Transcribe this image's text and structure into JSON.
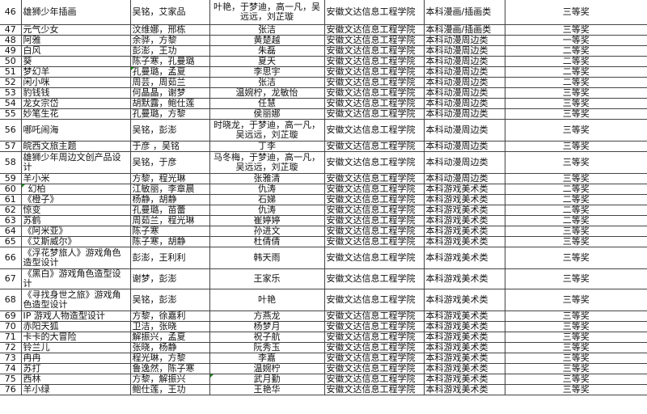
{
  "rows": [
    {
      "no": "46",
      "name": "雄狮少年插画",
      "authors": "吴铭，艾家品",
      "advisors": "叶艳，于梦迪，高一凡，吴远远，刘芷璇",
      "school": "安徽文达信息工程学院",
      "category": "本科漫画/插画类",
      "award": "三等奖",
      "h": "f"
    },
    {
      "no": "47",
      "name": "元气少女",
      "authors": "汶维娜，邢栋",
      "advisors": "张洁",
      "school": "安徽文达信息工程学院",
      "category": "本科漫画/插画类",
      "award": "三等奖",
      "h": "s"
    },
    {
      "no": "48",
      "name": "阿雅",
      "authors": "余骅，方黎",
      "advisors": "黄楚越",
      "school": "安徽文达信息工程学院",
      "category": "本科动漫周边类",
      "award": "一等奖",
      "h": "s"
    },
    {
      "no": "49",
      "name": "白风",
      "authors": "彭澎，王功",
      "advisors": "朱磊",
      "school": "安徽文达信息工程学院",
      "category": "本科动漫周边类",
      "award": "二等奖",
      "h": "s"
    },
    {
      "no": "50",
      "name": "葵",
      "authors": "陈子寒，孔曼璐",
      "advisors": "夏天",
      "school": "安徽文达信息工程学院",
      "category": "本科动漫周边类",
      "award": "二等奖",
      "h": "s"
    },
    {
      "no": "51",
      "name": "梦幻羊",
      "authors": " 孔曼璐，孟夏",
      "advisors": "李思宇",
      "school": "安徽文达信息工程学院",
      "category": "本科动漫周边类",
      "award": "二等奖",
      "h": "s",
      "mark": "authors"
    },
    {
      "no": "52",
      "name": "闲小咪",
      "authors": "周芸，周茹兰",
      "advisors": "张洁",
      "school": "安徽文达信息工程学院",
      "category": "本科动漫周边类",
      "award": "二等奖",
      "h": "s"
    },
    {
      "no": "53",
      "name": "豹钱钱",
      "authors": "何晶晶，谢梦",
      "advisors": "温婉柠，龙敏怡",
      "school": "安徽文达信息工程学院",
      "category": "本科动漫周边类",
      "award": "三等奖",
      "h": "s"
    },
    {
      "no": "54",
      "name": "龙女宗岱",
      "authors": "胡默露，鲍仕莲",
      "advisors": "任慧",
      "school": "安徽文达信息工程学院",
      "category": "本科动漫周边类",
      "award": "三等奖",
      "h": "s"
    },
    {
      "no": "55",
      "name": "妙笔生花",
      "authors": "孔曼璐，方黎",
      "advisors": "侯丽娜",
      "school": "安徽文达信息工程学院",
      "category": "本科动漫周边类",
      "award": "三等奖",
      "h": "s"
    },
    {
      "no": "56",
      "name": "哪吒闹海",
      "authors": "吴铭，彭澎",
      "advisors": "时晓龙，于梦迪，高一凡，吴远远，刘芷璇",
      "school": "安徽文达信息工程学院",
      "category": "本科动漫周边类",
      "award": "三等奖",
      "h": "d"
    },
    {
      "no": "57",
      "name": "皖西文旅主题",
      "authors": "于彦 ，吴铭",
      "advisors": "丁李",
      "school": "安徽文达信息工程学院",
      "category": "本科动漫周边类",
      "award": "三等奖",
      "h": "s"
    },
    {
      "no": "58",
      "name": "雄狮少年周边文创产品设计",
      "authors": "吴铭，于彦",
      "advisors": "马冬梅，于梦迪，高一凡，吴远远，刘芷璇",
      "school": "安徽文达信息工程学院",
      "category": "本科动漫周边类",
      "award": "三等奖",
      "h": "d"
    },
    {
      "no": "59",
      "name": "羊小米",
      "authors": "方黎，程光琳",
      "advisors": "张雅清",
      "school": "安徽文达信息工程学院",
      "category": "本科动漫周边类",
      "award": "三等奖",
      "h": "s"
    },
    {
      "no": "60",
      "name": "幻柏",
      "authors": "江敏丽，李章晨",
      "advisors": "仇涛",
      "school": "安徽文达信息工程学院",
      "category": "本科游戏美术类",
      "award": "二等奖",
      "h": "s",
      "mark": "name"
    },
    {
      "no": "61",
      "name": "《橙子》",
      "authors": "杨静，胡静",
      "advisors": "石娣",
      "school": "安徽文达信息工程学院",
      "category": "本科游戏美术类",
      "award": "二等奖",
      "h": "s"
    },
    {
      "no": "62",
      "name": "惊变",
      "authors": "孔曼璐，苗蕾",
      "advisors": "仇涛",
      "school": "安徽文达信息工程学院",
      "category": "本科游戏美术类",
      "award": "二等奖",
      "h": "s"
    },
    {
      "no": "63",
      "name": "苏鹤",
      "authors": "周茹兰，程光琳",
      "advisors": "崔婷婷",
      "school": "安徽文达信息工程学院",
      "category": "本科游戏美术类",
      "award": "二等奖",
      "h": "s"
    },
    {
      "no": "64",
      "name": "《阿米亚》",
      "authors": "陈子寒",
      "advisors": "孙进文",
      "school": "安徽文达信息工程学院",
      "category": "本科游戏美术类",
      "award": "三等奖",
      "h": "s"
    },
    {
      "no": "65",
      "name": "《艾斯威尔》",
      "authors": "陈子寒，胡静",
      "advisors": "杜倩倩",
      "school": "安徽文达信息工程学院",
      "category": "本科游戏美术类",
      "award": "三等奖",
      "h": "s"
    },
    {
      "no": "66",
      "name": "《浮花梦旅人》游戏角色造型设计",
      "authors": "彭澎，王利利",
      "advisors": "韩天雨",
      "school": "安徽文达信息工程学院",
      "category": "本科游戏美术类",
      "award": "三等奖",
      "h": "d"
    },
    {
      "no": "67",
      "name": "《黑白》游戏角色造型设计",
      "authors": "谢梦，彭澎",
      "advisors": "王家乐",
      "school": "安徽文达信息工程学院",
      "category": "本科游戏美术类",
      "award": "三等奖",
      "h": "s"
    },
    {
      "no": "68",
      "name": "《寻找身世之旅》游戏角色造型设计",
      "authors": "吴铭，彭澎",
      "advisors": "叶艳",
      "school": "安徽文达信息工程学院",
      "category": "本科游戏美术类",
      "award": "三等奖",
      "h": "d"
    },
    {
      "no": "69",
      "name": "IP 游戏人物造型设计",
      "authors": "方黎，徐嘉利",
      "advisors": "方燕龙",
      "school": "安徽文达信息工程学院",
      "category": "本科游戏美术类",
      "award": "三等奖",
      "h": "s"
    },
    {
      "no": "70",
      "name": "赤阳天狐",
      "authors": "卫洁，张晓",
      "advisors": "杨梦月",
      "school": "安徽文达信息工程学院",
      "category": "本科游戏美术类",
      "award": "三等奖",
      "h": "s"
    },
    {
      "no": "71",
      "name": "卡卡的大冒险",
      "authors": "解振兴，孟夏",
      "advisors": "祝子航",
      "school": "安徽文达信息工程学院",
      "category": "本科游戏美术类",
      "award": "三等奖",
      "h": "s"
    },
    {
      "no": "72",
      "name": "铃兰儿",
      "authors": "张晓，杨静",
      "advisors": "阮秀玉",
      "school": "安徽文达信息工程学院",
      "category": "本科游戏美术类",
      "award": "三等奖",
      "h": "s"
    },
    {
      "no": "73",
      "name": "冉冉",
      "authors": "程光琳，方黎",
      "advisors": "李嘉",
      "school": "安徽文达信息工程学院",
      "category": "本科游戏美术类",
      "award": "三等奖",
      "h": "s"
    },
    {
      "no": "74",
      "name": "苏打",
      "authors": "鲁逸然，陈子寒",
      "advisors": "温婉柠",
      "school": "安徽文达信息工程学院",
      "category": "本科游戏美术类",
      "award": "三等奖",
      "h": "s"
    },
    {
      "no": "75",
      "name": "西林",
      "authors": "方黎，解振兴",
      "advisors": "武月勤",
      "school": "安徽文达信息工程学院",
      "category": "本科游戏美术类",
      "award": "三等奖",
      "h": "s",
      "mark": "advisors"
    },
    {
      "no": "76",
      "name": "羊小绿",
      "authors": "鲍仕莲，王功",
      "advisors": "王艳华",
      "school": "安徽文达信息工程学院",
      "category": "本科游戏美术类",
      "award": "三等奖",
      "h": "s"
    }
  ]
}
